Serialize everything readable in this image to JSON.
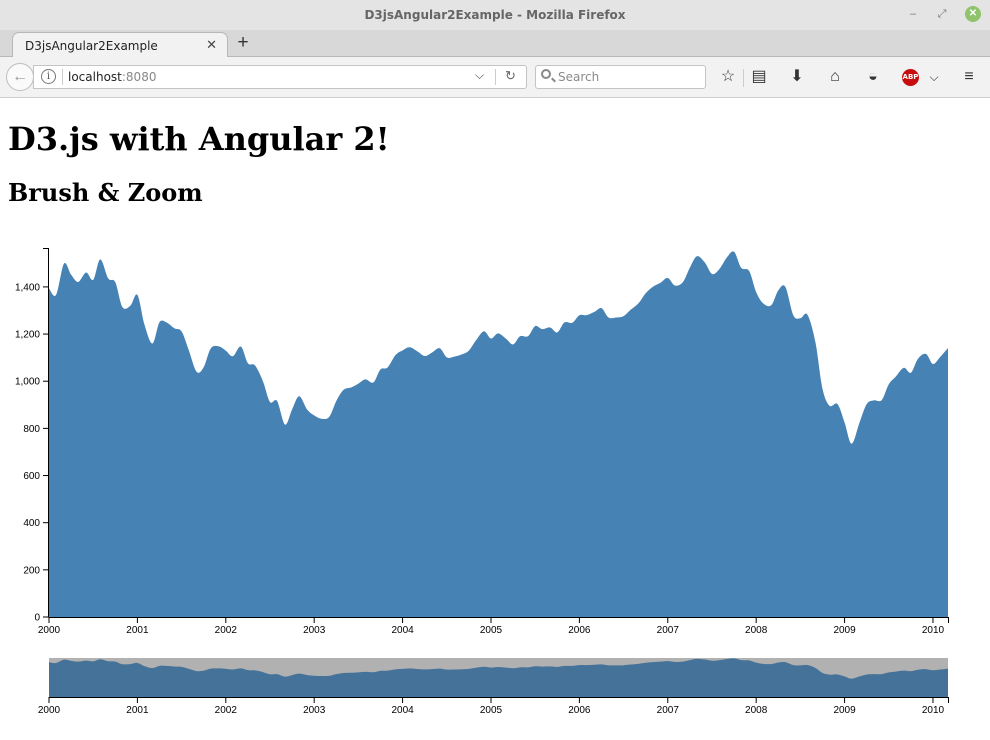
{
  "window": {
    "title": "D3jsAngular2Example - Mozilla Firefox"
  },
  "tabs": [
    {
      "label": "D3jsAngular2Example",
      "close_icon": "close-icon"
    }
  ],
  "new_tab_icon": "plus-icon",
  "navbar": {
    "url_host": "localhost",
    "url_port": ":8080",
    "search_placeholder": "Search",
    "icons": [
      "back-arrow-icon",
      "info-icon",
      "chevron-down-icon",
      "reload-icon",
      "search-icon",
      "bookmark-star-icon",
      "reading-list-icon",
      "download-icon",
      "home-icon",
      "pocket-icon",
      "adblock-icon",
      "hamburger-menu-icon"
    ],
    "adblock_label": "ABP"
  },
  "page": {
    "heading": "D3.js with Angular 2!",
    "subheading": "Brush & Zoom"
  },
  "chart_data": [
    {
      "type": "area",
      "title": "",
      "xlabel": "",
      "ylabel": "",
      "x_ticks": [
        "2000",
        "2001",
        "2002",
        "2003",
        "2004",
        "2005",
        "2006",
        "2007",
        "2008",
        "2009",
        "2010"
      ],
      "y_ticks": [
        "0",
        "200",
        "400",
        "600",
        "800",
        "1,000",
        "1,200",
        "1,400"
      ],
      "xlim": [
        2000.0,
        2010.17
      ],
      "ylim": [
        0,
        1565
      ],
      "color": "#4682b4",
      "series": [
        {
          "x": [
            2000.0,
            2000.08,
            2000.17,
            2000.25,
            2000.33,
            2000.42,
            2000.5,
            2000.58,
            2000.67,
            2000.75,
            2000.83,
            2000.92,
            2001.0,
            2001.08,
            2001.17,
            2001.25,
            2001.33,
            2001.42,
            2001.5,
            2001.58,
            2001.67,
            2001.75,
            2001.83,
            2001.92,
            2002.0,
            2002.08,
            2002.17,
            2002.25,
            2002.33,
            2002.42,
            2002.5,
            2002.58,
            2002.67,
            2002.75,
            2002.83,
            2002.92,
            2003.0,
            2003.08,
            2003.17,
            2003.25,
            2003.33,
            2003.42,
            2003.5,
            2003.58,
            2003.67,
            2003.75,
            2003.83,
            2003.92,
            2004.0,
            2004.08,
            2004.17,
            2004.25,
            2004.33,
            2004.42,
            2004.5,
            2004.58,
            2004.67,
            2004.75,
            2004.83,
            2004.92,
            2005.0,
            2005.08,
            2005.17,
            2005.25,
            2005.33,
            2005.42,
            2005.5,
            2005.58,
            2005.67,
            2005.75,
            2005.83,
            2005.92,
            2006.0,
            2006.08,
            2006.17,
            2006.25,
            2006.33,
            2006.42,
            2006.5,
            2006.58,
            2006.67,
            2006.75,
            2006.83,
            2006.92,
            2007.0,
            2007.08,
            2007.17,
            2007.25,
            2007.33,
            2007.42,
            2007.5,
            2007.58,
            2007.67,
            2007.75,
            2007.83,
            2007.92,
            2008.0,
            2008.08,
            2008.17,
            2008.25,
            2008.33,
            2008.42,
            2008.5,
            2008.58,
            2008.67,
            2008.75,
            2008.83,
            2008.92,
            2009.0,
            2009.08,
            2009.17,
            2009.25,
            2009.33,
            2009.42,
            2009.5,
            2009.58,
            2009.67,
            2009.75,
            2009.83,
            2009.92,
            2010.0,
            2010.08,
            2010.17
          ],
          "values": [
            1394,
            1366,
            1499,
            1452,
            1421,
            1461,
            1430,
            1517,
            1436,
            1420,
            1315,
            1320,
            1366,
            1240,
            1160,
            1250,
            1249,
            1224,
            1211,
            1133,
            1040,
            1060,
            1139,
            1148,
            1130,
            1106,
            1147,
            1076,
            1067,
            1000,
            912,
            916,
            816,
            880,
            936,
            880,
            855,
            841,
            849,
            916,
            963,
            974,
            990,
            1008,
            995,
            1050,
            1058,
            1111,
            1131,
            1144,
            1126,
            1107,
            1121,
            1140,
            1101,
            1104,
            1114,
            1130,
            1173,
            1212,
            1181,
            1203,
            1180,
            1156,
            1191,
            1191,
            1234,
            1221,
            1228,
            1207,
            1249,
            1248,
            1280,
            1280,
            1294,
            1310,
            1270,
            1270,
            1276,
            1303,
            1331,
            1373,
            1400,
            1418,
            1438,
            1406,
            1420,
            1482,
            1530,
            1503,
            1455,
            1474,
            1526,
            1549,
            1481,
            1468,
            1378,
            1330,
            1322,
            1385,
            1400,
            1280,
            1267,
            1282,
            1166,
            968,
            896,
            903,
            825,
            735,
            826,
            903,
            919,
            920,
            987,
            1020,
            1057,
            1036,
            1095,
            1116,
            1073,
            1102,
            1141
          ]
        }
      ]
    },
    {
      "type": "area",
      "title": "",
      "xlabel": "",
      "ylabel": "",
      "x_ticks": [
        "2000",
        "2001",
        "2002",
        "2003",
        "2004",
        "2005",
        "2006",
        "2007",
        "2008",
        "2009",
        "2010"
      ],
      "xlim": [
        2000.0,
        2010.17
      ],
      "ylim": [
        0,
        1565
      ],
      "color": "#4682b4",
      "brush": true
    }
  ]
}
